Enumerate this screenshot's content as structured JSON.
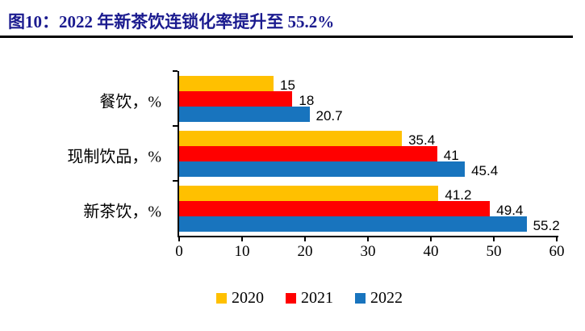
{
  "header": {
    "title": "图10：2022 年新茶饮连锁化率提升至 55.2%",
    "title_color": "#1B1B8F"
  },
  "chart_data": {
    "type": "bar",
    "orientation": "horizontal",
    "title": "2022 年新茶饮连锁化率提升至 55.2%",
    "categories": [
      "餐饮，%",
      "现制饮品，%",
      "新茶饮，%"
    ],
    "series": [
      {
        "name": "2020",
        "color": "#FFC000",
        "values": [
          15,
          35.4,
          41.2
        ]
      },
      {
        "name": "2021",
        "color": "#FF0000",
        "values": [
          18,
          41,
          49.4
        ]
      },
      {
        "name": "2022",
        "color": "#1874BE",
        "values": [
          20.7,
          45.4,
          55.2
        ]
      }
    ],
    "xlim": [
      0,
      60
    ],
    "x_ticks": [
      0,
      10,
      20,
      30,
      40,
      50,
      60
    ],
    "grid": false,
    "value_labels_shown": true,
    "legend_position": "bottom",
    "axis_color": "#000000"
  }
}
